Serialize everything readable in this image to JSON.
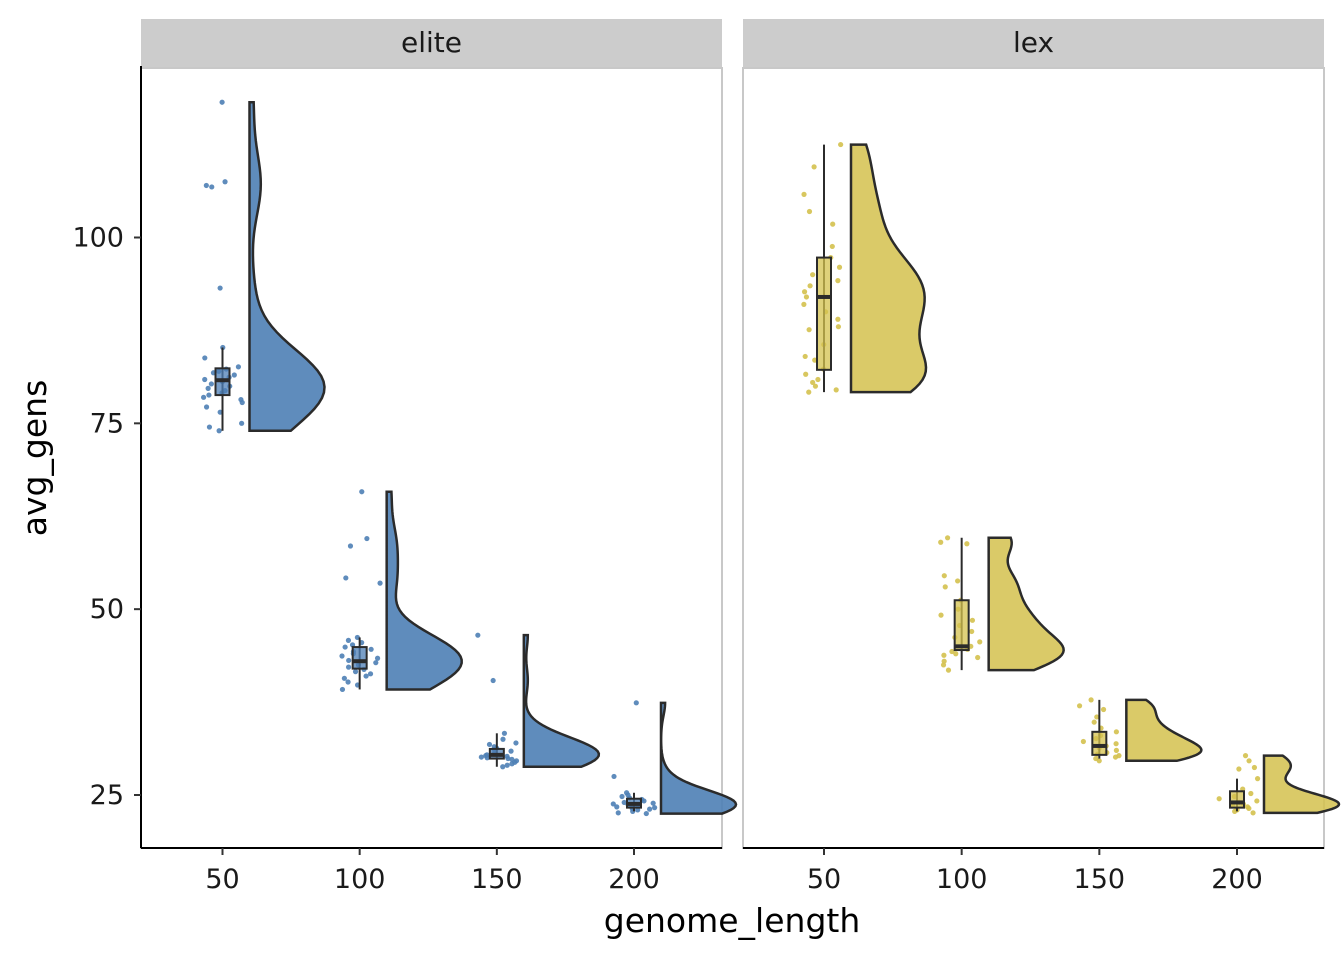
{
  "chart_data": {
    "type": "raincloud",
    "xlabel": "genome_length",
    "ylabel": "avg_gens",
    "x_ticks": [
      50,
      100,
      150,
      200
    ],
    "y_ticks": [
      25,
      50,
      75,
      100
    ],
    "ylim": [
      17.5,
      122.5
    ],
    "grid": false,
    "facets": [
      {
        "label": "elite",
        "color": "#4e7fb5",
        "groups": [
          {
            "x": 50,
            "min": 74.0,
            "q1": 78.8,
            "median": 80.8,
            "q3": 82.4,
            "max": 85.2,
            "points": [
              118.2,
              107.5,
              107.0,
              106.8,
              93.2,
              85.2,
              83.8,
              82.6,
              82.3,
              82.0,
              81.8,
              81.5,
              81.2,
              80.9,
              80.6,
              80.3,
              80.0,
              79.7,
              79.4,
              79.1,
              78.8,
              78.5,
              78.2,
              77.8,
              77.2,
              76.5,
              75.0,
              74.5,
              74.0
            ]
          },
          {
            "x": 100,
            "min": 39.2,
            "q1": 42.0,
            "median": 43.0,
            "q3": 44.9,
            "max": 46.2,
            "points": [
              65.8,
              59.5,
              58.5,
              54.2,
              53.5,
              46.2,
              45.8,
              45.5,
              45.2,
              44.9,
              44.6,
              44.3,
              44.0,
              43.7,
              43.4,
              43.1,
              42.8,
              42.5,
              42.2,
              41.9,
              41.6,
              41.3,
              41.0,
              40.7,
              40.2,
              39.8,
              39.2
            ]
          },
          {
            "x": 150,
            "min": 28.8,
            "q1": 29.9,
            "median": 30.4,
            "q3": 31.2,
            "max": 33.3,
            "points": [
              46.5,
              40.4,
              33.3,
              32.5,
              32.0,
              31.8,
              31.5,
              31.3,
              31.1,
              30.9,
              30.7,
              30.5,
              30.4,
              30.3,
              30.2,
              30.1,
              30.0,
              29.9,
              29.8,
              29.6,
              29.4,
              29.2,
              29.0,
              28.8
            ]
          },
          {
            "x": 200,
            "min": 22.8,
            "q1": 23.3,
            "median": 23.8,
            "q3": 24.5,
            "max": 25.3,
            "points": [
              37.4,
              27.5,
              25.3,
              25.0,
              24.8,
              24.6,
              24.4,
              24.2,
              24.0,
              23.9,
              23.8,
              23.7,
              23.6,
              23.5,
              23.4,
              23.3,
              23.2,
              23.1,
              23.0,
              22.8,
              22.6,
              22.5
            ]
          }
        ]
      },
      {
        "label": "lex",
        "color": "#d4c14e",
        "groups": [
          {
            "x": 50,
            "min": 79.2,
            "q1": 82.2,
            "median": 92.0,
            "q3": 97.3,
            "max": 112.5,
            "points": [
              112.5,
              109.5,
              105.8,
              103.5,
              101.8,
              98.8,
              97.3,
              96.0,
              95.0,
              94.2,
              93.5,
              92.7,
              92.0,
              91.0,
              90.0,
              89.0,
              88.0,
              87.6,
              85.6,
              84.0,
              83.5,
              82.3,
              81.6,
              80.9,
              80.5,
              80.0,
              79.5,
              79.2
            ]
          },
          {
            "x": 100,
            "min": 41.8,
            "q1": 44.5,
            "median": 45.0,
            "q3": 51.2,
            "max": 59.6,
            "points": [
              59.6,
              59.0,
              58.8,
              54.5,
              53.8,
              53.0,
              51.2,
              50.0,
              49.2,
              48.5,
              47.8,
              47.0,
              46.2,
              45.6,
              45.0,
              44.6,
              44.3,
              44.0,
              43.8,
              43.5,
              43.0,
              42.5,
              41.8
            ]
          },
          {
            "x": 150,
            "min": 29.9,
            "q1": 30.4,
            "median": 31.6,
            "q3": 33.5,
            "max": 37.8,
            "points": [
              37.8,
              37.0,
              36.5,
              35.5,
              34.8,
              34.0,
              33.5,
              33.0,
              32.6,
              32.2,
              31.9,
              31.6,
              31.3,
              31.0,
              30.7,
              30.5,
              30.3,
              30.1,
              29.9,
              29.6
            ]
          },
          {
            "x": 200,
            "min": 22.8,
            "q1": 23.3,
            "median": 24.0,
            "q3": 25.5,
            "max": 27.2,
            "points": [
              30.3,
              29.6,
              28.7,
              28.5,
              27.2,
              25.8,
              25.2,
              24.8,
              24.5,
              24.2,
              24.0,
              23.8,
              23.6,
              23.4,
              23.2,
              23.0,
              22.8,
              22.6
            ]
          }
        ]
      }
    ]
  }
}
